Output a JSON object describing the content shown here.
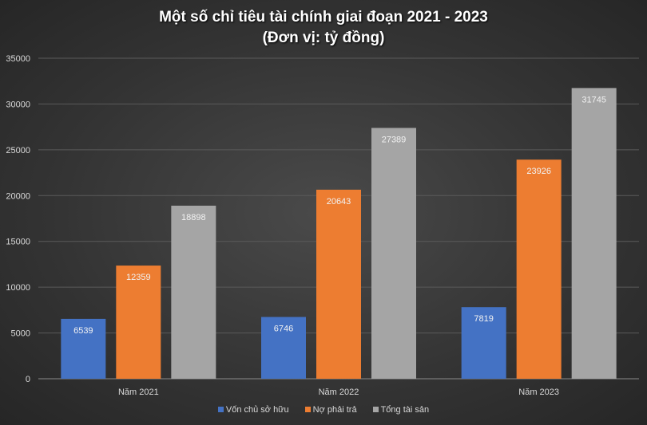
{
  "chart_data": {
    "type": "bar",
    "title": "Một số chỉ tiêu tài chính giai đoạn 2021 - 2023",
    "subtitle": "(Đơn vị: tỷ đồng)",
    "categories": [
      "Năm 2021",
      "Năm 2022",
      "Năm 2023"
    ],
    "series": [
      {
        "name": "Vốn chủ sở hữu",
        "values": [
          6539,
          6746,
          7819
        ],
        "color": "#4472c4"
      },
      {
        "name": "Nợ phải trả",
        "values": [
          12359,
          20643,
          23926
        ],
        "color": "#ed7d31"
      },
      {
        "name": "Tổng tài sản",
        "values": [
          18898,
          27389,
          31745
        ],
        "color": "#a5a5a5"
      }
    ],
    "ylim": [
      0,
      35000
    ],
    "yticks": [
      0,
      5000,
      10000,
      15000,
      20000,
      25000,
      30000,
      35000
    ],
    "grid": true,
    "legend": "bottom",
    "data_labels": true
  }
}
